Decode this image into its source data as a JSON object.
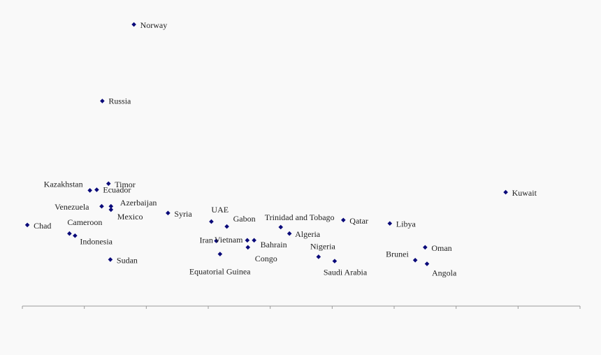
{
  "chart_data": {
    "type": "scatter",
    "title": "",
    "xlabel": "",
    "ylabel": "",
    "grid": false,
    "legend": "none",
    "xlim": [
      0,
      9
    ],
    "ylim": [
      0,
      10
    ],
    "x_ticks": [
      0,
      1,
      2,
      3,
      4,
      5,
      6,
      7,
      8,
      9
    ],
    "x_tick_labels": [],
    "marker_color": "#0a0a7a",
    "points": [
      {
        "name": "Norway",
        "x": 1.8,
        "y": 9.2
      },
      {
        "name": "Russia",
        "x": 1.29,
        "y": 6.7
      },
      {
        "name": "Timor",
        "x": 1.39,
        "y": 4.0
      },
      {
        "name": "Kazakhstan",
        "x": 1.09,
        "y": 3.78
      },
      {
        "name": "Ecuador",
        "x": 1.2,
        "y": 3.8
      },
      {
        "name": "Azerbaijan",
        "x": 1.43,
        "y": 3.26
      },
      {
        "name": "Venezuela",
        "x": 1.28,
        "y": 3.26
      },
      {
        "name": "Mexico",
        "x": 1.43,
        "y": 3.15
      },
      {
        "name": "Syria",
        "x": 2.35,
        "y": 3.04
      },
      {
        "name": "Chad",
        "x": 0.08,
        "y": 2.65
      },
      {
        "name": "Cameroon",
        "x": 0.76,
        "y": 2.37
      },
      {
        "name": "Indonesia",
        "x": 0.85,
        "y": 2.3
      },
      {
        "name": "Sudan",
        "x": 1.42,
        "y": 1.52
      },
      {
        "name": "UAE",
        "x": 3.05,
        "y": 2.76
      },
      {
        "name": "Gabon",
        "x": 3.3,
        "y": 2.6
      },
      {
        "name": "Iran",
        "x": 3.13,
        "y": 2.13
      },
      {
        "name": "Vietnam",
        "x": 3.63,
        "y": 2.15
      },
      {
        "name": "Bahrain",
        "x": 3.74,
        "y": 2.15
      },
      {
        "name": "Congo",
        "x": 3.64,
        "y": 1.92
      },
      {
        "name": "Equatorial Guinea",
        "x": 3.19,
        "y": 1.7
      },
      {
        "name": "Trinidad and Tobago",
        "x": 4.17,
        "y": 2.58
      },
      {
        "name": "Algeria",
        "x": 4.31,
        "y": 2.37
      },
      {
        "name": "Qatar",
        "x": 5.18,
        "y": 2.81
      },
      {
        "name": "Nigeria",
        "x": 4.78,
        "y": 1.61
      },
      {
        "name": "Saudi Arabia",
        "x": 5.04,
        "y": 1.47
      },
      {
        "name": "Libya",
        "x": 5.93,
        "y": 2.7
      },
      {
        "name": "Oman",
        "x": 6.5,
        "y": 1.92
      },
      {
        "name": "Brunei",
        "x": 6.34,
        "y": 1.5
      },
      {
        "name": "Angola",
        "x": 6.53,
        "y": 1.38
      },
      {
        "name": "Kuwait",
        "x": 7.8,
        "y": 3.72
      }
    ]
  }
}
